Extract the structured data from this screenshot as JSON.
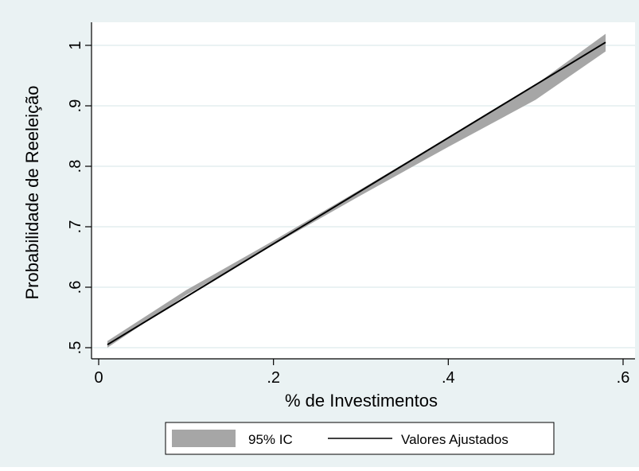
{
  "chart_data": {
    "type": "line",
    "xlabel": "% de Investimentos",
    "ylabel": "Probabilidade de Reeleição",
    "xlim": [
      0,
      0.6
    ],
    "ylim": [
      0.5,
      1
    ],
    "x_ticks": [
      0,
      0.2,
      0.4,
      0.6
    ],
    "x_tick_labels": [
      "0",
      ".2",
      ".4",
      ".6"
    ],
    "y_ticks": [
      0.5,
      0.6,
      0.7,
      0.8,
      0.9,
      1.0
    ],
    "y_tick_labels": [
      ".5",
      ".6",
      ".7",
      ".8",
      ".9",
      "1"
    ],
    "grid": true,
    "legend_position": "bottom",
    "series": [
      {
        "name": "95% IC",
        "kind": "band",
        "color": "#a6a6a6",
        "x": [
          0.01,
          0.1,
          0.2,
          0.3,
          0.4,
          0.5,
          0.58
        ],
        "lower": [
          0.5,
          0.587,
          0.67,
          0.752,
          0.832,
          0.91,
          0.99
        ],
        "upper": [
          0.511,
          0.595,
          0.677,
          0.762,
          0.848,
          0.935,
          1.019
        ]
      },
      {
        "name": "Valores Ajustados",
        "kind": "line",
        "color": "#000000",
        "x": [
          0.01,
          0.58
        ],
        "y": [
          0.505,
          1.005
        ]
      }
    ]
  },
  "colors": {
    "outer_background": "#eaf2f3",
    "plot_background": "#ffffff",
    "grid": "#eaf2f3",
    "band": "#a6a6a6",
    "line": "#000000"
  }
}
